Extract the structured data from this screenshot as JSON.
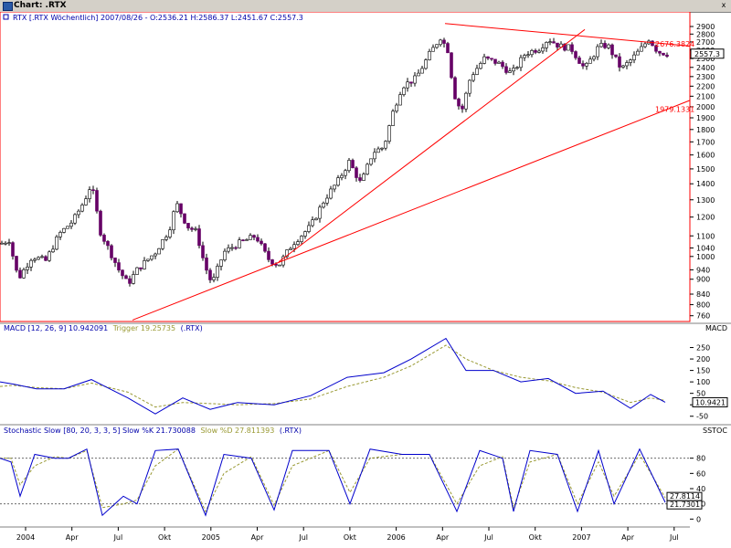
{
  "window": {
    "title": "Chart: .RTX",
    "close_glyph": "x"
  },
  "price_pane": {
    "legend": "RTX [.RTX Wöchentlich] 2007/08/26 - O:2536.21 H:2586.37 L:2451.67 C:2557.3",
    "last_value": "2557.3",
    "annotations": [
      {
        "text": "2676.3824",
        "value": 2676.3824
      },
      {
        "text": "1979.1331",
        "value": 1979.1331
      }
    ],
    "ticks": [
      2900,
      2800,
      2700,
      2600,
      2500,
      2400,
      2300,
      2200,
      2100,
      2000,
      1900,
      1800,
      1700,
      1600,
      1500,
      1400,
      1300,
      1200,
      1100,
      1040,
      1000,
      940,
      900,
      840,
      800,
      760
    ],
    "colors": {
      "up": "#ffffff",
      "down": "#660066",
      "wick": "#000000",
      "trendline": "#ff0000",
      "border": "#ff0000"
    }
  },
  "macd_pane": {
    "title": "MACD",
    "legend_main": "MACD [12, 26, 9] 10.942091",
    "legend_trigger": "Trigger 19.25735",
    "legend_suffix": "(.RTX)",
    "last_value": "10.9421",
    "ticks": [
      250,
      200,
      150,
      100,
      50,
      0,
      -50
    ],
    "colors": {
      "macd": "#0000cc",
      "trigger": "#999933"
    }
  },
  "stoch_pane": {
    "title": "SSTOC",
    "legend_main": "Stochastic Slow [80, 20, 3, 3, 5] Slow %K 21.730088",
    "legend_d": "Slow %D 27.811393",
    "legend_suffix": "(.RTX)",
    "last_k": "21.7301",
    "last_d": "27.8114",
    "ticks": [
      80,
      60,
      40,
      20,
      0
    ],
    "levels": [
      80,
      20
    ],
    "colors": {
      "k": "#0000cc",
      "d": "#999933"
    }
  },
  "time_axis": {
    "labels": [
      "2004",
      "Apr",
      "Jul",
      "Okt",
      "2005",
      "Apr",
      "Jul",
      "Okt",
      "2006",
      "Apr",
      "Jul",
      "Okt",
      "2007",
      "Apr",
      "Jul"
    ]
  },
  "chart_data": {
    "type": "candlestick",
    "frequency": "weekly",
    "symbol": ".RTX",
    "y_scale": "log",
    "ylim": [
      740,
      3000
    ],
    "anchors": [
      {
        "x": 0,
        "v": 1060
      },
      {
        "x": 10,
        "v": 1080
      },
      {
        "x": 20,
        "v": 900
      },
      {
        "x": 35,
        "v": 1000
      },
      {
        "x": 50,
        "v": 980
      },
      {
        "x": 65,
        "v": 1110
      },
      {
        "x": 80,
        "v": 1180
      },
      {
        "x": 92,
        "v": 1290
      },
      {
        "x": 100,
        "v": 1400
      },
      {
        "x": 110,
        "v": 1120
      },
      {
        "x": 130,
        "v": 940
      },
      {
        "x": 140,
        "v": 880
      },
      {
        "x": 150,
        "v": 940
      },
      {
        "x": 170,
        "v": 1020
      },
      {
        "x": 185,
        "v": 1130
      },
      {
        "x": 193,
        "v": 1280
      },
      {
        "x": 205,
        "v": 1150
      },
      {
        "x": 215,
        "v": 1120
      },
      {
        "x": 224,
        "v": 960
      },
      {
        "x": 232,
        "v": 880
      },
      {
        "x": 245,
        "v": 1020
      },
      {
        "x": 260,
        "v": 1060
      },
      {
        "x": 280,
        "v": 1100
      },
      {
        "x": 293,
        "v": 990
      },
      {
        "x": 305,
        "v": 960
      },
      {
        "x": 320,
        "v": 1060
      },
      {
        "x": 340,
        "v": 1150
      },
      {
        "x": 355,
        "v": 1300
      },
      {
        "x": 370,
        "v": 1420
      },
      {
        "x": 382,
        "v": 1550
      },
      {
        "x": 395,
        "v": 1400
      },
      {
        "x": 408,
        "v": 1620
      },
      {
        "x": 420,
        "v": 1660
      },
      {
        "x": 430,
        "v": 1950
      },
      {
        "x": 440,
        "v": 2200
      },
      {
        "x": 455,
        "v": 2280
      },
      {
        "x": 470,
        "v": 2550
      },
      {
        "x": 482,
        "v": 2760
      },
      {
        "x": 490,
        "v": 2600
      },
      {
        "x": 497,
        "v": 2120
      },
      {
        "x": 505,
        "v": 1950
      },
      {
        "x": 515,
        "v": 2300
      },
      {
        "x": 530,
        "v": 2500
      },
      {
        "x": 545,
        "v": 2450
      },
      {
        "x": 560,
        "v": 2330
      },
      {
        "x": 575,
        "v": 2560
      },
      {
        "x": 590,
        "v": 2620
      },
      {
        "x": 600,
        "v": 2740
      },
      {
        "x": 612,
        "v": 2650
      },
      {
        "x": 625,
        "v": 2620
      },
      {
        "x": 640,
        "v": 2380
      },
      {
        "x": 655,
        "v": 2640
      },
      {
        "x": 665,
        "v": 2660
      },
      {
        "x": 680,
        "v": 2380
      },
      {
        "x": 692,
        "v": 2500
      },
      {
        "x": 702,
        "v": 2620
      },
      {
        "x": 710,
        "v": 2740
      },
      {
        "x": 720,
        "v": 2580
      },
      {
        "x": 730,
        "v": 2557
      }
    ],
    "trendlines": [
      {
        "from": {
          "x": 145,
          "v": 745
        },
        "to": {
          "x": 755,
          "v": 2060
        }
      },
      {
        "from": {
          "x": 305,
          "v": 975
        },
        "to": {
          "x": 640,
          "v": 2860
        }
      },
      {
        "from": {
          "x": 487,
          "v": 2940
        },
        "to": {
          "x": 755,
          "v": 2650
        }
      }
    ],
    "macd": [
      {
        "x": 0,
        "m": 100,
        "t": 80
      },
      {
        "x": 15,
        "m": 90,
        "t": 85
      },
      {
        "x": 40,
        "m": 70,
        "t": 75
      },
      {
        "x": 70,
        "m": 70,
        "t": 70
      },
      {
        "x": 100,
        "m": 110,
        "t": 95
      },
      {
        "x": 140,
        "m": 30,
        "t": 55
      },
      {
        "x": 170,
        "m": -40,
        "t": -10
      },
      {
        "x": 200,
        "m": 30,
        "t": 10
      },
      {
        "x": 230,
        "m": -20,
        "t": 5
      },
      {
        "x": 260,
        "m": 10,
        "t": 0
      },
      {
        "x": 300,
        "m": 0,
        "t": 5
      },
      {
        "x": 340,
        "m": 40,
        "t": 25
      },
      {
        "x": 380,
        "m": 120,
        "t": 80
      },
      {
        "x": 420,
        "m": 140,
        "t": 120
      },
      {
        "x": 450,
        "m": 200,
        "t": 170
      },
      {
        "x": 488,
        "m": 290,
        "t": 260
      },
      {
        "x": 510,
        "m": 150,
        "t": 200
      },
      {
        "x": 540,
        "m": 150,
        "t": 150
      },
      {
        "x": 570,
        "m": 100,
        "t": 120
      },
      {
        "x": 600,
        "m": 115,
        "t": 105
      },
      {
        "x": 630,
        "m": 50,
        "t": 75
      },
      {
        "x": 660,
        "m": 60,
        "t": 55
      },
      {
        "x": 690,
        "m": -15,
        "t": 10
      },
      {
        "x": 712,
        "m": 45,
        "t": 30
      },
      {
        "x": 728,
        "m": 11,
        "t": 19
      }
    ],
    "stochastic": [
      {
        "x": 0,
        "k": 80,
        "d": 80
      },
      {
        "x": 12,
        "k": 75,
        "d": 80
      },
      {
        "x": 22,
        "k": 30,
        "d": 45
      },
      {
        "x": 38,
        "k": 85,
        "d": 70
      },
      {
        "x": 60,
        "k": 80,
        "d": 82
      },
      {
        "x": 75,
        "k": 80,
        "d": 80
      },
      {
        "x": 95,
        "k": 92,
        "d": 90
      },
      {
        "x": 112,
        "k": 5,
        "d": 15
      },
      {
        "x": 135,
        "k": 30,
        "d": 20
      },
      {
        "x": 150,
        "k": 20,
        "d": 25
      },
      {
        "x": 170,
        "k": 90,
        "d": 70
      },
      {
        "x": 195,
        "k": 92,
        "d": 92
      },
      {
        "x": 225,
        "k": 5,
        "d": 10
      },
      {
        "x": 245,
        "k": 85,
        "d": 60
      },
      {
        "x": 275,
        "k": 80,
        "d": 82
      },
      {
        "x": 300,
        "k": 12,
        "d": 18
      },
      {
        "x": 320,
        "k": 90,
        "d": 70
      },
      {
        "x": 360,
        "k": 90,
        "d": 90
      },
      {
        "x": 383,
        "k": 20,
        "d": 35
      },
      {
        "x": 405,
        "k": 92,
        "d": 80
      },
      {
        "x": 440,
        "k": 85,
        "d": 85
      },
      {
        "x": 470,
        "k": 85,
        "d": 85
      },
      {
        "x": 500,
        "k": 10,
        "d": 20
      },
      {
        "x": 525,
        "k": 90,
        "d": 70
      },
      {
        "x": 550,
        "k": 80,
        "d": 82
      },
      {
        "x": 562,
        "k": 10,
        "d": 15
      },
      {
        "x": 580,
        "k": 90,
        "d": 75
      },
      {
        "x": 610,
        "k": 85,
        "d": 85
      },
      {
        "x": 632,
        "k": 10,
        "d": 20
      },
      {
        "x": 655,
        "k": 90,
        "d": 75
      },
      {
        "x": 672,
        "k": 20,
        "d": 30
      },
      {
        "x": 700,
        "k": 92,
        "d": 85
      },
      {
        "x": 728,
        "k": 22,
        "d": 28
      }
    ]
  }
}
